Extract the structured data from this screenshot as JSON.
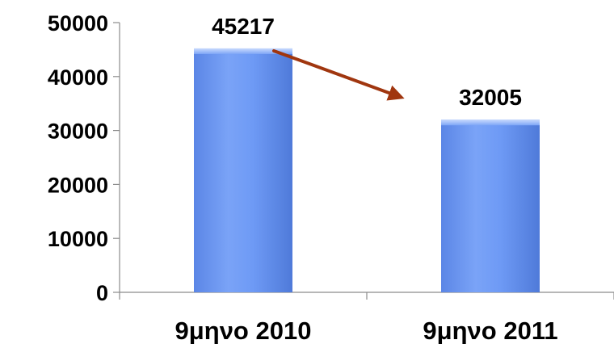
{
  "chart_data": {
    "type": "bar",
    "categories": [
      "9μηνο 2010",
      "9μηνο 2011"
    ],
    "values": [
      45217,
      32005
    ],
    "data_labels": [
      "45217",
      "32005"
    ],
    "title": "",
    "xlabel": "",
    "ylabel": "",
    "ylim": [
      0,
      50000
    ],
    "yticks": [
      0,
      10000,
      20000,
      30000,
      40000,
      50000
    ],
    "ytick_labels": [
      "0",
      "10000",
      "20000",
      "30000",
      "40000",
      "50000"
    ],
    "grid": false,
    "legend": "none",
    "bar_color": "#6e9af5",
    "bar_highlight": "#a9c4fb",
    "arrow_color": "#a0360f",
    "annotations": [
      {
        "type": "arrow",
        "from_category": 0,
        "to_category": 1,
        "meaning": "decrease"
      }
    ]
  }
}
